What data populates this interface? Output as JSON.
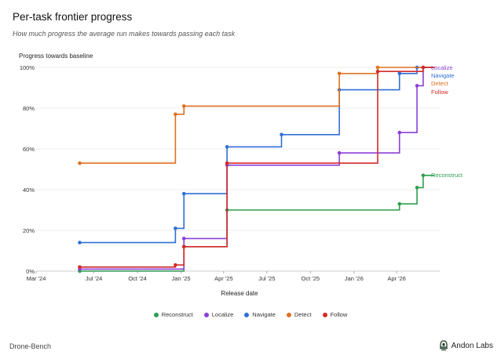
{
  "header": {
    "title": "Per-task frontier progress",
    "subtitle": "How much progress the average run makes towards passing each task"
  },
  "footer": {
    "left": "Drone-Bench",
    "brand": "Andon Labs",
    "brand_icon": "andon-labs-logo-icon"
  },
  "chart_data": {
    "type": "line",
    "step": "post",
    "ylabel": "Progress towards baseline",
    "xlabel": "Release date",
    "x_range": [
      "2024-03-01",
      "2026-07-01"
    ],
    "ylim": [
      0,
      100
    ],
    "x_ticks": [
      {
        "date": "2024-03-01",
        "label": "Mar '24"
      },
      {
        "date": "2024-07-01",
        "label": "Jul '24"
      },
      {
        "date": "2024-10-01",
        "label": "Oct '24"
      },
      {
        "date": "2025-01-01",
        "label": "Jan '25"
      },
      {
        "date": "2025-04-01",
        "label": "Apr '25"
      },
      {
        "date": "2025-07-01",
        "label": "Jul '25"
      },
      {
        "date": "2025-10-01",
        "label": "Oct '25"
      },
      {
        "date": "2026-01-01",
        "label": "Jan '26"
      },
      {
        "date": "2026-04-01",
        "label": "Apr '26"
      }
    ],
    "y_ticks": [
      {
        "value": 0,
        "label": "0%"
      },
      {
        "value": 20,
        "label": "20%"
      },
      {
        "value": 40,
        "label": "40%"
      },
      {
        "value": 60,
        "label": "60%"
      },
      {
        "value": 80,
        "label": "80%"
      },
      {
        "value": 100,
        "label": "100%"
      }
    ],
    "grid": "horizontal",
    "legend_position": "bottom",
    "end_labels": true,
    "line_end_date": "2026-06-20",
    "series": [
      {
        "name": "Reconstruct",
        "color": "#2e9e4f",
        "points": [
          {
            "x": "2024-06-01",
            "y": 0
          },
          {
            "x": "2025-01-07",
            "y": 12
          },
          {
            "x": "2025-04-08",
            "y": 30
          },
          {
            "x": "2026-04-07",
            "y": 33
          },
          {
            "x": "2026-05-14",
            "y": 41
          },
          {
            "x": "2026-05-27",
            "y": 47
          }
        ]
      },
      {
        "name": "Localize",
        "color": "#8a3fd8",
        "points": [
          {
            "x": "2024-06-01",
            "y": 1
          },
          {
            "x": "2025-01-07",
            "y": 16
          },
          {
            "x": "2025-04-08",
            "y": 52
          },
          {
            "x": "2025-12-01",
            "y": 58
          },
          {
            "x": "2026-04-07",
            "y": 68
          },
          {
            "x": "2026-05-14",
            "y": 91
          },
          {
            "x": "2026-05-27",
            "y": 100
          }
        ]
      },
      {
        "name": "Navigate",
        "color": "#2f6fd6",
        "points": [
          {
            "x": "2024-06-01",
            "y": 14
          },
          {
            "x": "2024-12-20",
            "y": 21
          },
          {
            "x": "2025-01-07",
            "y": 38
          },
          {
            "x": "2025-04-08",
            "y": 61
          },
          {
            "x": "2025-08-01",
            "y": 67
          },
          {
            "x": "2025-12-01",
            "y": 89
          },
          {
            "x": "2026-04-07",
            "y": 97
          },
          {
            "x": "2026-05-14",
            "y": 100
          }
        ]
      },
      {
        "name": "Detect",
        "color": "#e07020",
        "points": [
          {
            "x": "2024-06-01",
            "y": 53
          },
          {
            "x": "2024-12-20",
            "y": 77
          },
          {
            "x": "2025-01-07",
            "y": 81
          },
          {
            "x": "2025-12-01",
            "y": 97
          },
          {
            "x": "2026-02-20",
            "y": 100
          }
        ]
      },
      {
        "name": "Follow",
        "color": "#d42a2a",
        "points": [
          {
            "x": "2024-06-01",
            "y": 2
          },
          {
            "x": "2024-12-20",
            "y": 3
          },
          {
            "x": "2025-01-07",
            "y": 12
          },
          {
            "x": "2025-04-08",
            "y": 53
          },
          {
            "x": "2026-02-20",
            "y": 98
          },
          {
            "x": "2026-05-27",
            "y": 100
          }
        ]
      }
    ]
  }
}
